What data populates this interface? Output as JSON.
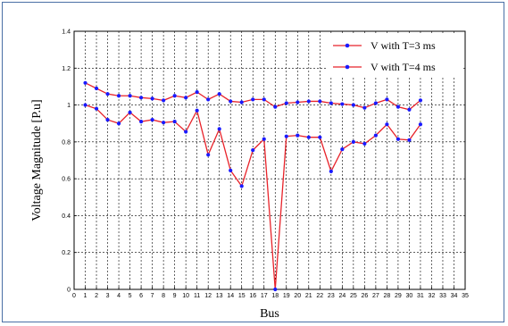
{
  "chart_data": {
    "type": "line",
    "xlabel": "Bus",
    "ylabel": "Voltage Magnitude [P.u]",
    "xlim": [
      0,
      35
    ],
    "ylim": [
      0,
      1.4
    ],
    "xticks": [
      0,
      1,
      2,
      3,
      4,
      5,
      6,
      7,
      8,
      9,
      10,
      11,
      12,
      13,
      14,
      15,
      16,
      17,
      18,
      19,
      20,
      21,
      22,
      23,
      24,
      25,
      26,
      27,
      28,
      29,
      30,
      31,
      32,
      33,
      34,
      35
    ],
    "yticks": [
      0,
      0.2,
      0.4,
      0.6,
      0.8,
      1,
      1.2,
      1.4
    ],
    "ytick_labels": [
      "0",
      "0.2",
      "0.4",
      "0.6",
      "0.8",
      "1",
      "1.2",
      "1.4"
    ],
    "grid": true,
    "legend_position": "top-right",
    "series": [
      {
        "name": "V with T=3 ms",
        "color": "#e8232a",
        "marker_color": "#1a1aff",
        "x": [
          1,
          2,
          3,
          4,
          5,
          6,
          7,
          8,
          9,
          10,
          11,
          12,
          13,
          14,
          15,
          16,
          17,
          18,
          19,
          20,
          21,
          22,
          23,
          24,
          25,
          26,
          27,
          28,
          29,
          30,
          31
        ],
        "values": [
          1.12,
          1.09,
          1.06,
          1.05,
          1.05,
          1.04,
          1.035,
          1.025,
          1.05,
          1.04,
          1.07,
          1.03,
          1.06,
          1.02,
          1.015,
          1.03,
          1.03,
          0.99,
          1.01,
          1.015,
          1.02,
          1.02,
          1.01,
          1.005,
          1.0,
          0.985,
          1.01,
          1.03,
          0.99,
          0.975,
          1.025
        ]
      },
      {
        "name": "V with T=4 ms",
        "color": "#e8232a",
        "marker_color": "#1a1aff",
        "x": [
          1,
          2,
          3,
          4,
          5,
          6,
          7,
          8,
          9,
          10,
          11,
          12,
          13,
          14,
          15,
          16,
          17,
          18,
          19,
          20,
          21,
          22,
          23,
          24,
          25,
          26,
          27,
          28,
          29,
          30,
          31
        ],
        "values": [
          1.0,
          0.98,
          0.92,
          0.9,
          0.96,
          0.91,
          0.92,
          0.905,
          0.91,
          0.855,
          0.97,
          0.73,
          0.87,
          0.645,
          0.56,
          0.755,
          0.815,
          0.0,
          0.83,
          0.835,
          0.825,
          0.825,
          0.64,
          0.76,
          0.8,
          0.79,
          0.835,
          0.895,
          0.815,
          0.81,
          0.895
        ]
      }
    ]
  }
}
